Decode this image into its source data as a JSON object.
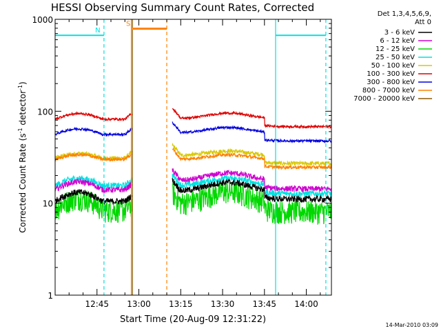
{
  "chart_data": {
    "type": "line",
    "title": "HESSI Observing Summary Count Rates, Corrected",
    "xlabel": "Start Time (20-Aug-09 12:31:22)",
    "ylabel": "Corrected Count Rate (s",
    "ylabel_sup1": "-1",
    "ylabel_mid": " detector",
    "ylabel_sup2": "-1",
    "ylabel_end": ")",
    "y_scale": "log",
    "ylim": [
      1,
      1000
    ],
    "y_ticks": [
      {
        "value": 1,
        "label": "1"
      },
      {
        "value": 10,
        "label": "10"
      },
      {
        "value": 100,
        "label": "100"
      },
      {
        "value": 1000,
        "label": "1000"
      }
    ],
    "xlim_minutes": [
      0,
      99
    ],
    "x_ticks": [
      {
        "minutes": 15,
        "label": "12:45"
      },
      {
        "minutes": 30,
        "label": "13:00"
      },
      {
        "minutes": 45,
        "label": "13:15"
      },
      {
        "minutes": 60,
        "label": "13:30"
      },
      {
        "minutes": 75,
        "label": "13:45"
      },
      {
        "minutes": 90,
        "label": "14:00"
      }
    ],
    "legend": {
      "placement": "right",
      "header": [
        "Det 1,3,4,5,6,9,",
        "Att 0"
      ],
      "entries": [
        {
          "label": "3 - 6 keV",
          "color": "#000000"
        },
        {
          "label": "6 - 12 keV",
          "color": "#d000d0"
        },
        {
          "label": "12 - 25 keV",
          "color": "#00d800"
        },
        {
          "label": "25 - 50 keV",
          "color": "#00e0e0"
        },
        {
          "label": "50 - 100 keV",
          "color": "#d8c800"
        },
        {
          "label": "100 - 300 keV",
          "color": "#e00000"
        },
        {
          "label": "300 - 800 keV",
          "color": "#0000e0"
        },
        {
          "label": "800 - 7000 keV",
          "color": "#ff8000"
        },
        {
          "label": "7000 - 20000 keV",
          "color": "#8b5a00"
        }
      ]
    },
    "series": [
      {
        "name": "3 - 6 keV",
        "color": "#000000",
        "pre": 10.5,
        "post": 13.5,
        "dayNight": 1.25,
        "noise": 0.08
      },
      {
        "name": "6 - 12 keV",
        "color": "#d000d0",
        "pre": 14,
        "post": 17.5,
        "dayNight": 1.22,
        "noise": 0.07
      },
      {
        "name": "12 - 25 keV",
        "color": "#00d800",
        "pre": 8.5,
        "post": 10,
        "dayNight": 1.35,
        "noise": 0.16
      },
      {
        "name": "25 - 50 keV",
        "color": "#00e0e0",
        "pre": 15.5,
        "post": 15.5,
        "dayNight": 1.2,
        "noise": 0.08
      },
      {
        "name": "50 - 100 keV",
        "color": "#d8c800",
        "pre": 31,
        "post": 33,
        "dayNight": 1.12,
        "noise": 0.05
      },
      {
        "name": "100 - 300 keV",
        "color": "#e00000",
        "pre": 82,
        "post": 83,
        "dayNight": 1.15,
        "noise": 0.03
      },
      {
        "name": "300 - 800 keV",
        "color": "#0000e0",
        "pre": 56,
        "post": 58,
        "dayNight": 1.15,
        "noise": 0.03
      },
      {
        "name": "800 - 7000 keV",
        "color": "#ff8000",
        "pre": 30,
        "post": 30,
        "dayNight": 1.12,
        "noise": 0.04
      },
      {
        "name": "7000 - 20000 keV",
        "color": "#8b5a00",
        "pre": 1,
        "post": 1,
        "dayNight": 1,
        "noise": 0
      }
    ],
    "intervals": [
      {
        "label": "N",
        "color": "#00e0e0",
        "start": 0,
        "end": 17.5,
        "level": 670
      },
      {
        "label": "",
        "color": "#00e0e0",
        "start": 79,
        "end": 97,
        "level": 670
      },
      {
        "label": "S",
        "color": "#ff8000",
        "start": 27.5,
        "end": 40,
        "level": 790
      }
    ],
    "markers": [
      {
        "minutes": 17.5,
        "color": "#00e0e0",
        "style": "dashed"
      },
      {
        "minutes": 79,
        "color": "#00e0e0",
        "style": "solid"
      },
      {
        "minutes": 97,
        "color": "#00e0e0",
        "style": "dashed"
      },
      {
        "minutes": 27.3,
        "color": "#ff8000",
        "style": "solid"
      },
      {
        "minutes": 27.7,
        "color": "#8b5a00",
        "style": "solid"
      },
      {
        "minutes": 40,
        "color": "#ff8000",
        "style": "dashed"
      }
    ],
    "data_gap_minutes": [
      27.5,
      42
    ],
    "timestamp": "14-Mar-2010 03:09"
  }
}
